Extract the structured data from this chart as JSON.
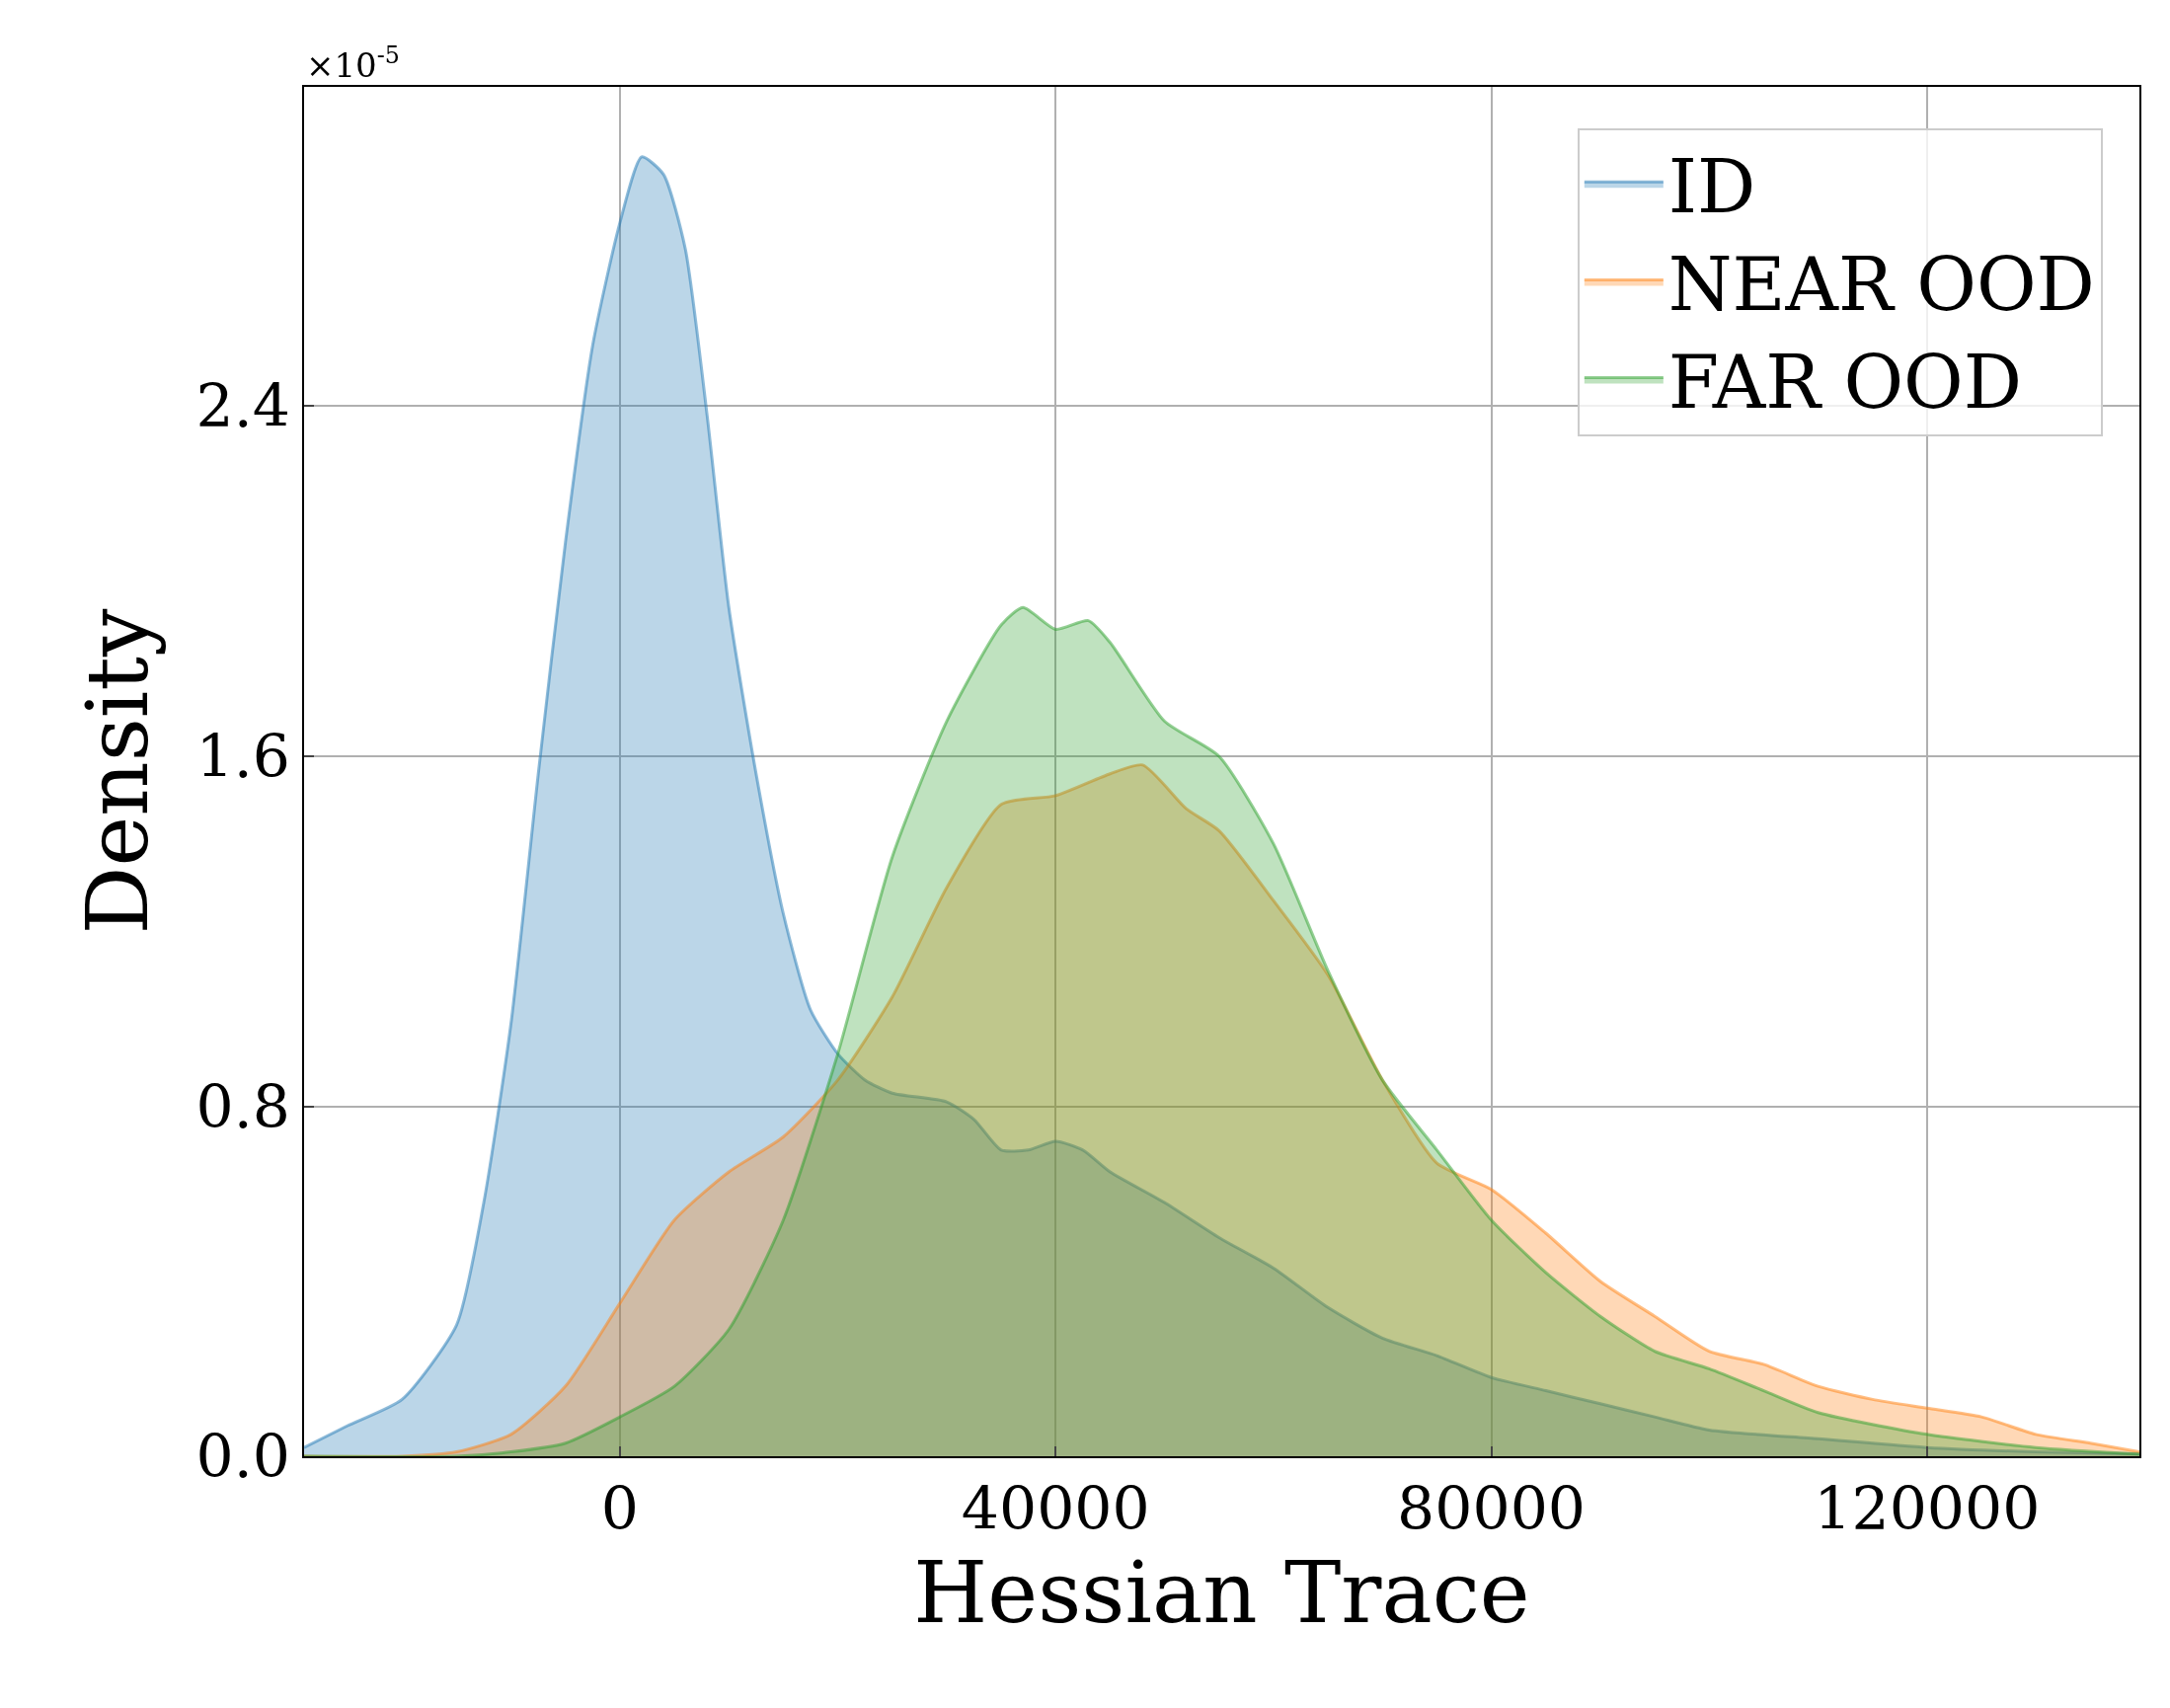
{
  "chart_data": {
    "type": "area",
    "xlabel": "Hessian Trace",
    "ylabel": "Density",
    "annotations": [
      "×10$^{-5}$"
    ],
    "xlim": [
      -29000,
      139500
    ],
    "xticks": [
      0,
      40000,
      80000,
      120000
    ],
    "ylim": [
      0,
      3.13
    ],
    "yticks": [
      {
        "value": 0,
        "label": "0.0"
      },
      0.8,
      1.6,
      2.4
    ],
    "grid": true,
    "legend": "top right",
    "series": [
      {
        "name": "ID",
        "color": "#1f77b4",
        "x": [
          -29000,
          -25000,
          -20000,
          -15000,
          -12500,
          -10000,
          -7500,
          -5000,
          -2500,
          0,
          2000,
          4000,
          6000,
          8000,
          10000,
          12500,
          15000,
          17500,
          20000,
          22500,
          25000,
          30000,
          32500,
          35000,
          37500,
          40000,
          42500,
          45000,
          50000,
          55000,
          60000,
          65000,
          70000,
          75000,
          80000,
          85000,
          90000,
          95000,
          100000,
          110000,
          120000,
          130000,
          139500
        ],
        "values": [
          0.02,
          0.07,
          0.13,
          0.3,
          0.58,
          0.99,
          1.56,
          2.09,
          2.54,
          2.82,
          2.97,
          2.93,
          2.76,
          2.38,
          1.94,
          1.56,
          1.24,
          1.02,
          0.92,
          0.86,
          0.83,
          0.81,
          0.77,
          0.7,
          0.7,
          0.72,
          0.7,
          0.65,
          0.58,
          0.5,
          0.43,
          0.34,
          0.27,
          0.23,
          0.18,
          0.15,
          0.12,
          0.09,
          0.06,
          0.04,
          0.02,
          0.01,
          0.005
        ]
      },
      {
        "name": "NEAR OOD",
        "color": "#ff7f0e",
        "x": [
          -29000,
          -20000,
          -15000,
          -10000,
          -5000,
          0,
          5000,
          10000,
          15000,
          20000,
          25000,
          30000,
          35000,
          40000,
          45000,
          48000,
          52000,
          55000,
          60000,
          65000,
          70000,
          75000,
          80000,
          85000,
          90000,
          95000,
          100000,
          105000,
          110000,
          115000,
          120000,
          125000,
          130000,
          135000,
          139500
        ],
        "values": [
          0.0,
          0.0,
          0.01,
          0.05,
          0.16,
          0.35,
          0.54,
          0.65,
          0.73,
          0.86,
          1.05,
          1.3,
          1.49,
          1.51,
          1.56,
          1.58,
          1.48,
          1.43,
          1.27,
          1.1,
          0.86,
          0.67,
          0.61,
          0.51,
          0.4,
          0.32,
          0.24,
          0.21,
          0.16,
          0.13,
          0.11,
          0.09,
          0.05,
          0.03,
          0.01
        ]
      },
      {
        "name": "FAR OOD",
        "color": "#2ca02c",
        "x": [
          -29000,
          -15000,
          -10000,
          -5000,
          0,
          5000,
          10000,
          15000,
          20000,
          25000,
          30000,
          35000,
          37000,
          40000,
          43000,
          45000,
          50000,
          55000,
          60000,
          65000,
          70000,
          75000,
          80000,
          85000,
          90000,
          95000,
          100000,
          105000,
          110000,
          120000,
          130000,
          139500
        ],
        "values": [
          0.0,
          0.0,
          0.01,
          0.03,
          0.09,
          0.16,
          0.29,
          0.54,
          0.92,
          1.37,
          1.68,
          1.9,
          1.94,
          1.89,
          1.91,
          1.86,
          1.68,
          1.6,
          1.4,
          1.11,
          0.86,
          0.7,
          0.54,
          0.42,
          0.32,
          0.24,
          0.2,
          0.15,
          0.1,
          0.05,
          0.02,
          0.005
        ]
      }
    ]
  }
}
